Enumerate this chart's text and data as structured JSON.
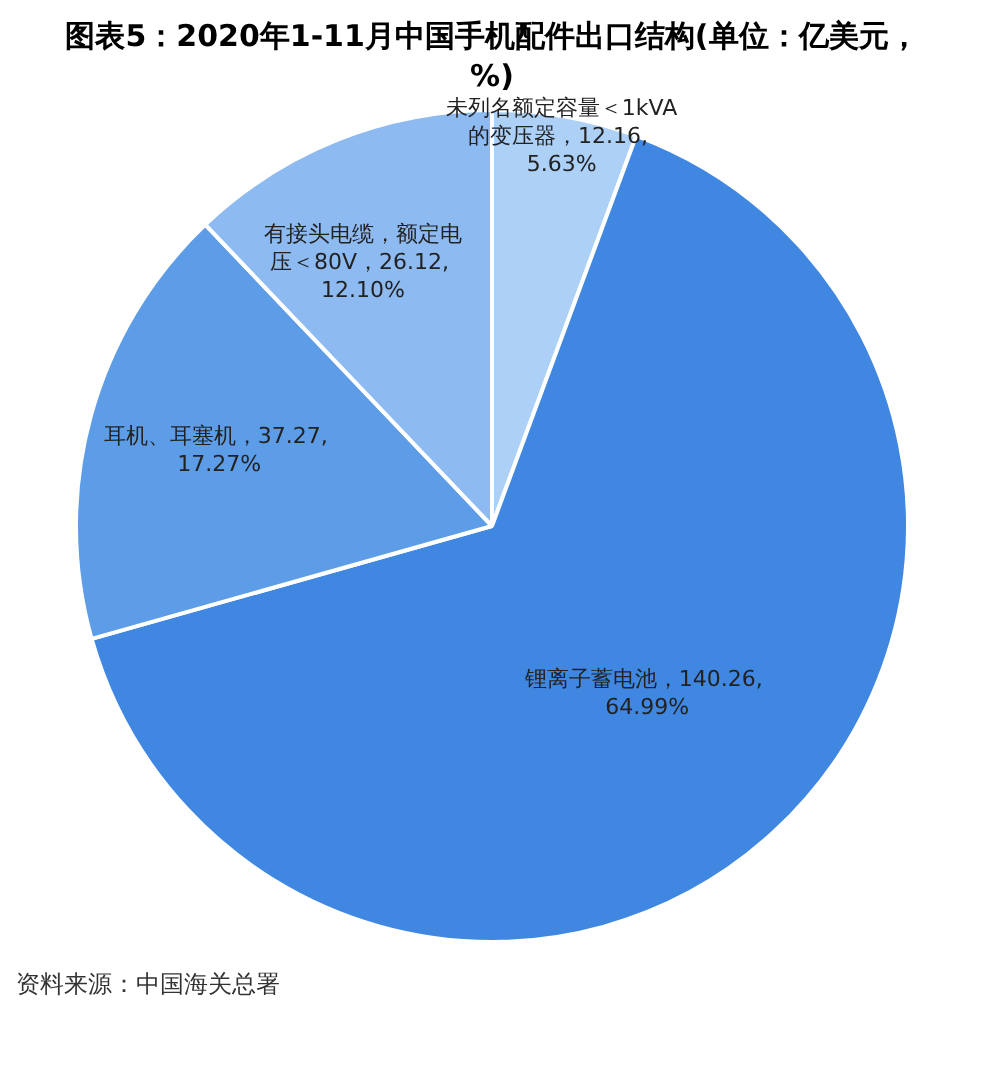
{
  "chart_data": {
    "type": "pie",
    "title": "图表5：2020年1-11月中国手机配件出口结构(单位：亿美元，%)",
    "categories": [
      "未列名额定容量＜1kVA的变压器",
      "锂离子蓄电池",
      "耳机、耳塞机",
      "有接头电缆，额定电压＜80V"
    ],
    "values": [
      12.16,
      140.26,
      37.27,
      26.12
    ],
    "value_labels": [
      "12.16, 5.63%",
      "140.26, 64.99%",
      "37.27, 17.27%",
      "26.12, 12.10%"
    ],
    "colors": [
      "#add0f6",
      "#3f87e0",
      "#5d9de8",
      "#8dbaf0"
    ],
    "legend": false,
    "annotations": [
      "资料来源：中国海关总署"
    ]
  }
}
